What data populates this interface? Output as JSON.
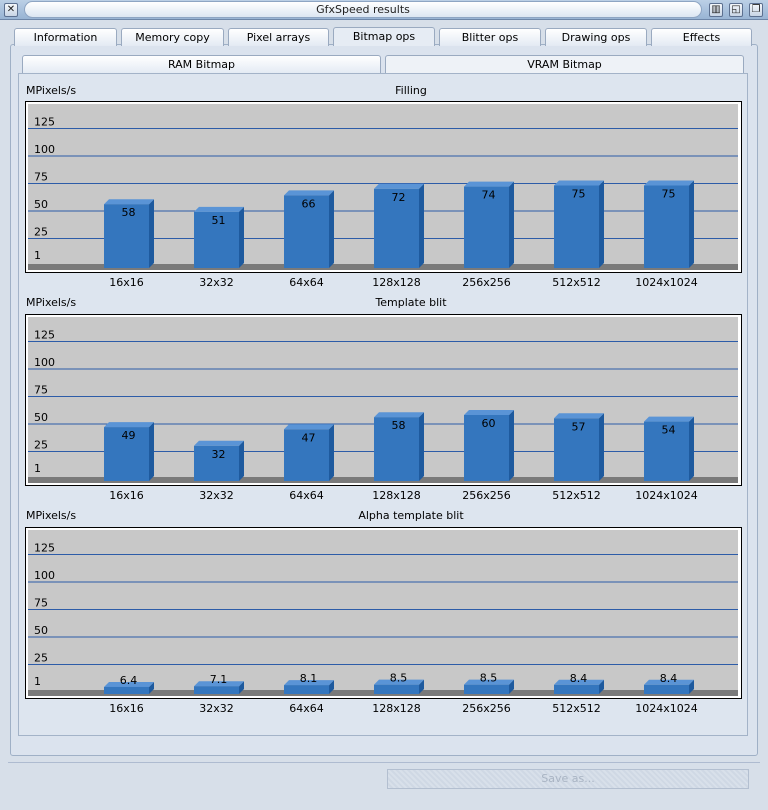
{
  "window": {
    "title": "GfxSpeed results",
    "close_glyph": "✕",
    "iconify_glyph": "▥",
    "zoom_glyph": "◱",
    "depth_glyph": "❐"
  },
  "tabs": [
    {
      "label": "Information",
      "active": false
    },
    {
      "label": "Memory copy",
      "active": false
    },
    {
      "label": "Pixel arrays",
      "active": false
    },
    {
      "label": "Bitmap ops",
      "active": true
    },
    {
      "label": "Blitter ops",
      "active": false
    },
    {
      "label": "Drawing ops",
      "active": false
    },
    {
      "label": "Effects",
      "active": false
    }
  ],
  "subtabs": [
    {
      "label": "RAM Bitmap",
      "active": false
    },
    {
      "label": "VRAM Bitmap",
      "active": true
    }
  ],
  "save_button": {
    "label": "Save as...",
    "enabled": false
  },
  "colors": {
    "bar_front": "#3476be",
    "bar_side": "#1e5a9e",
    "bar_top": "#5a94d6",
    "plot_bg": "#c8c8c8",
    "floor": "#7a7a7a",
    "gridline": "#2d5ca8"
  },
  "chart_data": [
    {
      "type": "bar",
      "title": "Filling",
      "ylabel": "MPixels/s",
      "categories": [
        "16x16",
        "32x32",
        "64x64",
        "128x128",
        "256x256",
        "512x512",
        "1024x1024"
      ],
      "values": [
        58,
        51,
        66,
        72,
        74,
        75,
        75
      ],
      "value_labels": [
        "58",
        "51",
        "66",
        "72",
        "74",
        "75",
        "75"
      ],
      "yticks": [
        "1",
        "25",
        "50",
        "75",
        "100",
        "125"
      ],
      "ytick_values": [
        1,
        25,
        50,
        75,
        100,
        125
      ],
      "ylim": [
        0,
        150
      ],
      "grid": true
    },
    {
      "type": "bar",
      "title": "Template blit",
      "ylabel": "MPixels/s",
      "categories": [
        "16x16",
        "32x32",
        "64x64",
        "128x128",
        "256x256",
        "512x512",
        "1024x1024"
      ],
      "values": [
        49,
        32,
        47,
        58,
        60,
        57,
        54
      ],
      "value_labels": [
        "49",
        "32",
        "47",
        "58",
        "60",
        "57",
        "54"
      ],
      "yticks": [
        "1",
        "25",
        "50",
        "75",
        "100",
        "125"
      ],
      "ytick_values": [
        1,
        25,
        50,
        75,
        100,
        125
      ],
      "ylim": [
        0,
        150
      ],
      "grid": true
    },
    {
      "type": "bar",
      "title": "Alpha template blit",
      "ylabel": "MPixels/s",
      "categories": [
        "16x16",
        "32x32",
        "64x64",
        "128x128",
        "256x256",
        "512x512",
        "1024x1024"
      ],
      "values": [
        6.4,
        7.1,
        8.1,
        8.5,
        8.5,
        8.4,
        8.4
      ],
      "value_labels": [
        "6.4",
        "7.1",
        "8.1",
        "8.5",
        "8.5",
        "8.4",
        "8.4"
      ],
      "yticks": [
        "1",
        "25",
        "50",
        "75",
        "100",
        "125"
      ],
      "ytick_values": [
        1,
        25,
        50,
        75,
        100,
        125
      ],
      "ylim": [
        0,
        150
      ],
      "grid": true
    }
  ]
}
